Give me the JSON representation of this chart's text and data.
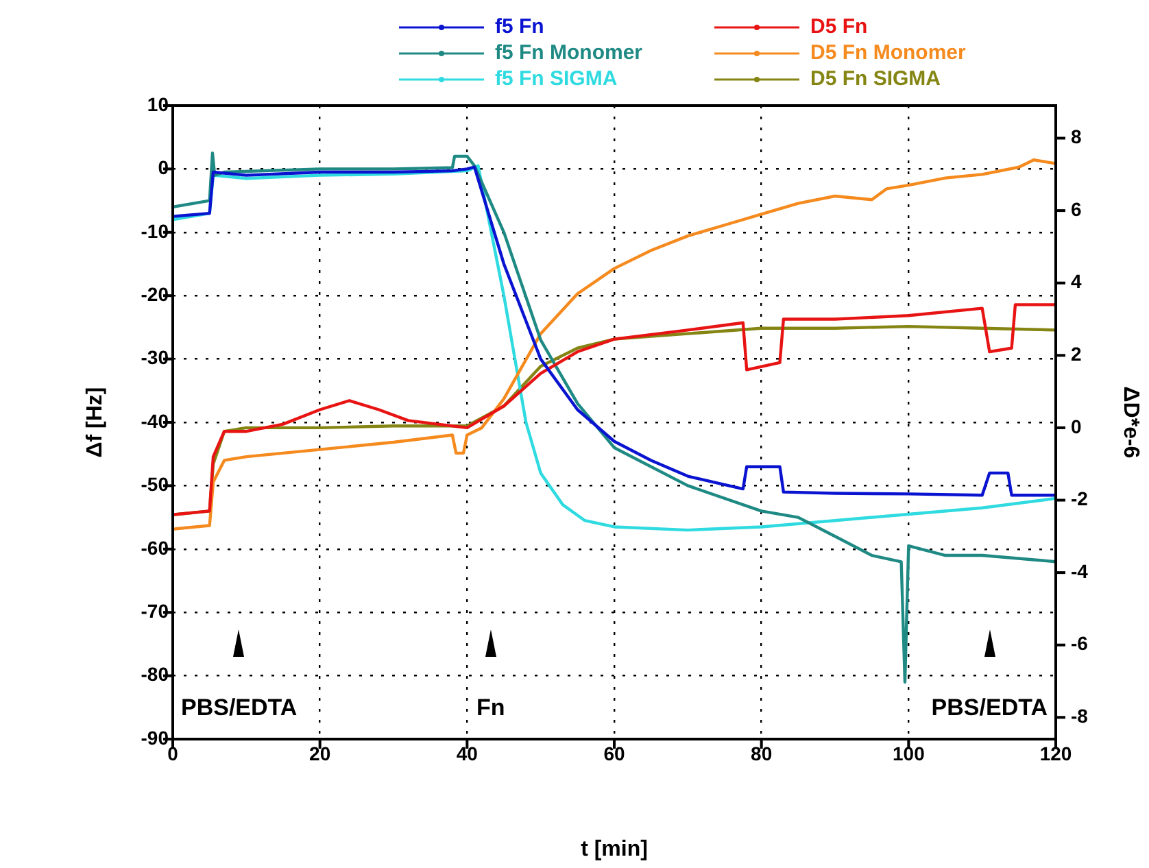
{
  "chart_data": {
    "type": "line",
    "xlabel": "t [min]",
    "ylabel": "Δf [Hz]",
    "y2label": "ΔD*e-6",
    "xlim": [
      0,
      120
    ],
    "xticks": [
      0,
      20,
      40,
      60,
      80,
      100,
      120
    ],
    "ylim": [
      -90,
      10
    ],
    "yticks": [
      -90,
      -80,
      -70,
      -60,
      -50,
      -40,
      -30,
      -20,
      -10,
      0,
      10
    ],
    "y2lim": [
      -8.6,
      8.9
    ],
    "y2ticks": [
      -8,
      -6,
      -4,
      -2,
      0,
      2,
      4,
      6,
      8
    ],
    "grid": true,
    "legend": "top",
    "line_style": "solid",
    "series": [
      {
        "name": "f5 Fn",
        "color": "#0a14d0",
        "x": [
          0,
          5,
          5.5,
          10,
          20,
          30,
          38,
          40,
          41,
          45,
          50,
          55,
          60,
          65,
          70,
          77.5,
          78,
          82.5,
          83,
          90,
          100,
          110,
          111,
          113.5,
          114,
          120
        ],
        "values": [
          -7.5,
          -7,
          -0.5,
          -1,
          -0.5,
          -0.5,
          -0.3,
          0,
          0.3,
          -15,
          -30,
          -38,
          -43,
          -46,
          -48.5,
          -50.5,
          -47,
          -47,
          -51,
          -51.2,
          -51.3,
          -51.5,
          -48,
          -48,
          -51.5,
          -51.5
        ]
      },
      {
        "name": "D5 Fn",
        "color": "#e81414",
        "axis": "y2",
        "x": [
          0,
          5,
          5.5,
          7,
          10,
          15,
          20,
          24,
          28,
          32,
          36,
          40,
          45,
          50,
          55,
          60,
          70,
          77.5,
          78,
          82.5,
          83,
          90,
          100,
          110,
          111,
          114,
          114.5,
          120
        ],
        "values": [
          -2.4,
          -2.3,
          -0.8,
          -0.1,
          -0.1,
          0.1,
          0.5,
          0.75,
          0.5,
          0.2,
          0.1,
          0,
          0.6,
          1.5,
          2.1,
          2.45,
          2.7,
          2.9,
          1.6,
          1.8,
          3,
          3,
          3.1,
          3.3,
          2.1,
          2.2,
          3.4,
          3.4
        ]
      },
      {
        "name": "f5 Fn Monomer",
        "color": "#1f8a84",
        "x": [
          0,
          5,
          5.4,
          5.7,
          7,
          20,
          30,
          38,
          38.3,
          40,
          41,
          45,
          50,
          55,
          60,
          70,
          80,
          85,
          90,
          95,
          99,
          99.5,
          100,
          105,
          110,
          120
        ],
        "values": [
          -6,
          -5,
          2.5,
          -1,
          -0.5,
          0,
          0,
          0.2,
          2,
          2,
          0.5,
          -10,
          -27,
          -37,
          -44,
          -50,
          -54,
          -55,
          -58,
          -61,
          -62,
          -81,
          -59.5,
          -61,
          -61,
          -62
        ]
      },
      {
        "name": "D5 Fn Monomer",
        "color": "#f58a1e",
        "axis": "y2",
        "x": [
          0,
          5,
          5.5,
          7,
          10,
          20,
          30,
          38,
          38.5,
          39.5,
          40,
          42,
          45,
          50,
          55,
          60,
          65,
          70,
          75,
          80,
          85,
          90,
          95,
          97,
          100,
          105,
          110,
          115,
          117,
          120
        ],
        "values": [
          -2.8,
          -2.7,
          -1.5,
          -0.9,
          -0.8,
          -0.6,
          -0.4,
          -0.2,
          -0.7,
          -0.7,
          -0.2,
          0,
          0.8,
          2.6,
          3.7,
          4.4,
          4.9,
          5.3,
          5.6,
          5.9,
          6.2,
          6.4,
          6.3,
          6.6,
          6.7,
          6.9,
          7,
          7.2,
          7.4,
          7.3
        ]
      },
      {
        "name": "f5 Fn SIGMA",
        "color": "#2fdbe0",
        "x": [
          0,
          5,
          5.5,
          10,
          20,
          30,
          40,
          41.5,
          45,
          48,
          50,
          53,
          56,
          60,
          70,
          80,
          90,
          100,
          110,
          120
        ],
        "values": [
          -8,
          -7,
          -1,
          -1.5,
          -1,
          -0.8,
          -0.3,
          0.5,
          -20,
          -40,
          -48,
          -53,
          -55.5,
          -56.5,
          -57,
          -56.5,
          -55.5,
          -54.5,
          -53.5,
          -52
        ]
      },
      {
        "name": "D5 Fn SIGMA",
        "color": "#858514",
        "axis": "y2",
        "x": [
          0,
          5,
          5.5,
          7,
          10,
          20,
          30,
          40,
          45,
          50,
          55,
          60,
          70,
          80,
          90,
          100,
          110,
          120
        ],
        "values": [
          -2.4,
          -2.3,
          -1,
          -0.1,
          0,
          0,
          0.05,
          0.05,
          0.6,
          1.7,
          2.2,
          2.45,
          2.6,
          2.75,
          2.75,
          2.8,
          2.75,
          2.7
        ]
      }
    ],
    "annotations": [
      "PBS/EDTA",
      "Fn",
      "PBS/EDTA"
    ]
  }
}
